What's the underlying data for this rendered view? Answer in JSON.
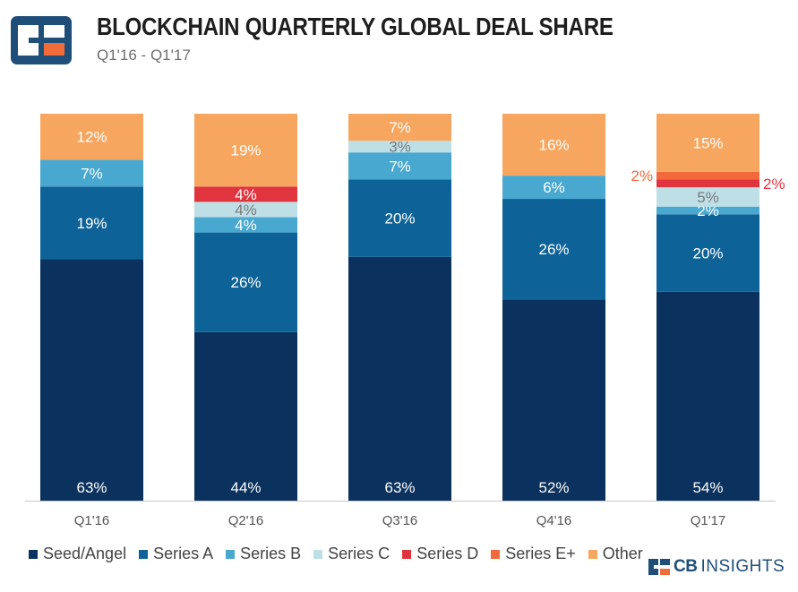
{
  "header": {
    "title": "BLOCKCHAIN QUARTERLY GLOBAL DEAL SHARE",
    "subtitle": "Q1'16 - Q1'17"
  },
  "brand": {
    "prefix": "CB",
    "name": "INSIGHTS"
  },
  "colors": {
    "Seed/Angel": "#0b325e",
    "Series A": "#0d6398",
    "Series B": "#49a8cf",
    "Series C": "#bfdfe6",
    "Series D": "#e0343e",
    "Series E+": "#f2693c",
    "Other": "#f6a65f"
  },
  "chart_data": {
    "type": "bar",
    "stacked": true,
    "title": "BLOCKCHAIN QUARTERLY GLOBAL DEAL SHARE",
    "subtitle": "Q1'16 - Q1'17",
    "categories": [
      "Q1'16",
      "Q2'16",
      "Q3'16",
      "Q4'16",
      "Q1'17"
    ],
    "ylim": [
      0,
      100
    ],
    "legend_position": "bottom",
    "series": [
      {
        "name": "Seed/Angel",
        "values": [
          63,
          44,
          63,
          52,
          54
        ],
        "labels": [
          "63%",
          "44%",
          "63%",
          "52%",
          "54%"
        ]
      },
      {
        "name": "Series A",
        "values": [
          19,
          26,
          20,
          26,
          20
        ],
        "labels": [
          "19%",
          "26%",
          "20%",
          "26%",
          "20%"
        ]
      },
      {
        "name": "Series B",
        "values": [
          7,
          4,
          7,
          6,
          2
        ],
        "labels": [
          "7%",
          "4%",
          "7%",
          "6%",
          "2%"
        ]
      },
      {
        "name": "Series C",
        "values": [
          0,
          4,
          3,
          0,
          5
        ],
        "labels": [
          "",
          "4%",
          "3%",
          "",
          "5%"
        ]
      },
      {
        "name": "Series D",
        "values": [
          0,
          4,
          0,
          0,
          2
        ],
        "labels": [
          "",
          "4%",
          "",
          "",
          "2%"
        ]
      },
      {
        "name": "Series E+",
        "values": [
          0,
          0,
          0,
          0,
          2
        ],
        "labels": [
          "",
          "",
          "",
          "",
          "2%"
        ]
      },
      {
        "name": "Other",
        "values": [
          12,
          19,
          7,
          16,
          15
        ],
        "labels": [
          "12%",
          "19%",
          "7%",
          "16%",
          "15%"
        ]
      }
    ]
  }
}
